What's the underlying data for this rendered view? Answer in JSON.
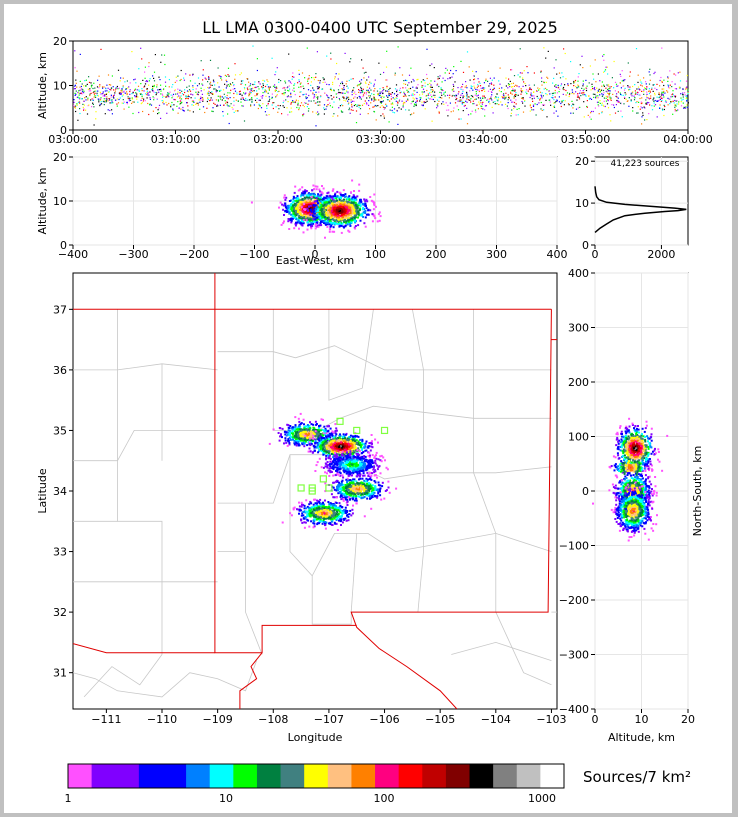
{
  "title": "LL LMA 0300-0400 UTC September 29, 2025",
  "colors": {
    "state_border": "#e00000",
    "county_border": "#c8c8c8",
    "station_marker": "#80ff40"
  },
  "chart_data": [
    {
      "name": "altitude-time",
      "type": "scatter",
      "ylabel": "Altitude, km",
      "ylim": [
        0,
        20
      ],
      "yticks": [
        "0",
        "10",
        "20"
      ],
      "xticks": [
        "03:00:00",
        "03:10:00",
        "03:20:00",
        "03:30:00",
        "03:40:00",
        "03:50:00",
        "04:00:00"
      ],
      "xlim_minutes": [
        0,
        60
      ],
      "description_of_points": "dense band of sources between about 3 and 12 km for the whole hour"
    },
    {
      "name": "altitude-eastwest",
      "type": "heatmap",
      "ylabel": "Altitude, km",
      "xlabel": "East-West, km",
      "xlim": [
        -400,
        400
      ],
      "ylim": [
        0,
        20
      ],
      "xticks": [
        "−400",
        "−300",
        "−200",
        "−100",
        "0",
        "100",
        "200",
        "300",
        "400"
      ],
      "yticks": [
        "0",
        "10",
        "20"
      ],
      "clusters": [
        {
          "x": -10,
          "y": 8.5,
          "width_km": 80
        },
        {
          "x": 40,
          "y": 8,
          "width_km": 90
        }
      ]
    },
    {
      "name": "altitude-histogram",
      "type": "line",
      "annotation": "41,223 sources",
      "xlim": [
        0,
        2800
      ],
      "ylim": [
        0,
        21
      ],
      "xticks": [
        "0",
        "2000"
      ],
      "yticks": [
        "0",
        "10",
        "20"
      ],
      "points": [
        [
          0,
          3
        ],
        [
          150,
          4
        ],
        [
          350,
          5
        ],
        [
          550,
          6
        ],
        [
          900,
          7
        ],
        [
          1500,
          7.6
        ],
        [
          2100,
          8
        ],
        [
          2500,
          8.2
        ],
        [
          2750,
          8.5
        ],
        [
          2400,
          8.8
        ],
        [
          1700,
          9.2
        ],
        [
          900,
          9.7
        ],
        [
          350,
          10.2
        ],
        [
          120,
          10.8
        ],
        [
          50,
          11.5
        ],
        [
          20,
          12.5
        ],
        [
          0,
          14
        ]
      ]
    },
    {
      "name": "plan-view-map",
      "type": "heatmap",
      "xlabel": "Longitude",
      "ylabel": "Latitude",
      "xlim": [
        -111.6,
        -102.9
      ],
      "ylim": [
        30.4,
        37.6
      ],
      "xticks": [
        "−111",
        "−110",
        "−109",
        "−108",
        "−107",
        "−106",
        "−105",
        "−104",
        "−103"
      ],
      "yticks": [
        "31",
        "32",
        "33",
        "34",
        "35",
        "36",
        "37"
      ],
      "clusters": [
        {
          "lon": -107.4,
          "lat": 34.95,
          "intensity": "medium"
        },
        {
          "lon": -106.8,
          "lat": 34.75,
          "intensity": "high"
        },
        {
          "lon": -106.6,
          "lat": 34.45,
          "intensity": "low"
        },
        {
          "lon": -106.5,
          "lat": 34.05,
          "intensity": "medium"
        },
        {
          "lon": -107.1,
          "lat": 33.65,
          "intensity": "medium"
        }
      ],
      "stations": [
        [
          -106.8,
          35.15
        ],
        [
          -106.5,
          35.0
        ],
        [
          -106.0,
          35.0
        ],
        [
          -107.5,
          34.05
        ],
        [
          -107.3,
          34.05
        ],
        [
          -107.1,
          34.2
        ],
        [
          -107.0,
          34.05
        ],
        [
          -107.3,
          34.0
        ]
      ]
    },
    {
      "name": "northsouth-altitude",
      "type": "heatmap",
      "xlabel": "Altitude, km",
      "ylabel": "North-South, km",
      "xlim": [
        0,
        20
      ],
      "ylim": [
        -400,
        400
      ],
      "xticks": [
        "0",
        "10",
        "20"
      ],
      "yticks": [
        "−400",
        "−300",
        "−200",
        "−100",
        "0",
        "100",
        "200",
        "300",
        "400"
      ],
      "clusters": [
        {
          "alt": 8.5,
          "ns": 80
        },
        {
          "alt": 8,
          "ns": 0
        },
        {
          "alt": 8,
          "ns": -35
        },
        {
          "alt": 7.5,
          "ns": 45
        }
      ]
    }
  ],
  "colorbar": {
    "label": "Sources/7 km²",
    "tick_labels": [
      "1",
      "10",
      "100",
      "1000"
    ],
    "colors": [
      "#ff50ff",
      "#8000ff",
      "#8000ff",
      "#0000ff",
      "#0000ff",
      "#0080ff",
      "#00ffff",
      "#00ff00",
      "#008040",
      "#408080",
      "#ffff00",
      "#ffc080",
      "#ff8000",
      "#ff0080",
      "#ff0000",
      "#c00000",
      "#800000",
      "#000000",
      "#808080",
      "#c0c0c0",
      "#ffffff"
    ]
  }
}
